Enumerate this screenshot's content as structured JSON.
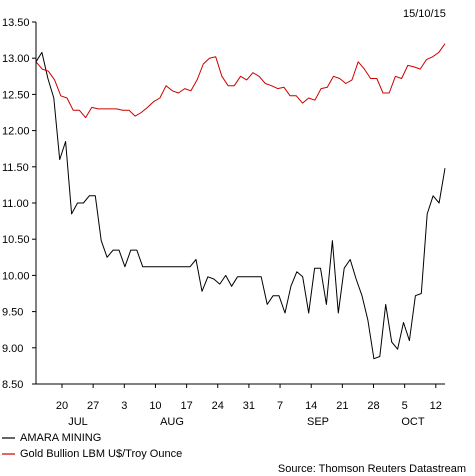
{
  "chart_data": {
    "type": "line",
    "date_label": "15/10/15",
    "source": "Source: Thomson Reuters Datastream",
    "ylim": [
      8.5,
      13.5
    ],
    "y_ticks": [
      "13.50",
      "13.00",
      "12.50",
      "12.00",
      "11.50",
      "11.00",
      "10.50",
      "10.00",
      "9.50",
      "9.00",
      "8.50"
    ],
    "x_ticks": [
      "20",
      "27",
      "3",
      "10",
      "17",
      "24",
      "31",
      "7",
      "14",
      "21",
      "28",
      "5",
      "12"
    ],
    "months": [
      "JUL",
      "AUG",
      "SEP",
      "OCT"
    ],
    "colors": {
      "amara": "#000000",
      "gold": "#cc0000"
    },
    "series": [
      {
        "name": "AMARA MINING",
        "key": "amara",
        "values": [
          12.95,
          13.08,
          12.72,
          12.45,
          11.6,
          11.85,
          10.85,
          11.0,
          11.0,
          11.1,
          11.1,
          10.48,
          10.25,
          10.35,
          10.35,
          10.12,
          10.35,
          10.35,
          10.12,
          10.12,
          10.12,
          10.12,
          10.12,
          10.12,
          10.12,
          10.12,
          10.12,
          10.22,
          9.78,
          9.98,
          9.95,
          9.88,
          10.0,
          9.85,
          9.98,
          9.98,
          9.98,
          9.98,
          9.98,
          9.6,
          9.72,
          9.72,
          9.48,
          9.85,
          10.05,
          9.98,
          9.48,
          10.1,
          10.1,
          9.6,
          10.48,
          9.48,
          10.1,
          10.22,
          9.95,
          9.72,
          9.38,
          8.85,
          8.88,
          9.6,
          9.08,
          8.98,
          9.35,
          9.1,
          9.72,
          9.75,
          10.85,
          11.1,
          11.0,
          11.48
        ]
      },
      {
        "name": "Gold Bullion LBM U$/Troy Ounce",
        "key": "gold",
        "values": [
          12.95,
          12.85,
          12.82,
          12.7,
          12.48,
          12.45,
          12.28,
          12.28,
          12.18,
          12.32,
          12.3,
          12.3,
          12.3,
          12.3,
          12.28,
          12.28,
          12.2,
          12.25,
          12.32,
          12.4,
          12.45,
          12.62,
          12.55,
          12.52,
          12.58,
          12.55,
          12.7,
          12.92,
          13.0,
          13.02,
          12.75,
          12.62,
          12.62,
          12.75,
          12.7,
          12.8,
          12.75,
          12.65,
          12.62,
          12.58,
          12.6,
          12.48,
          12.48,
          12.38,
          12.45,
          12.42,
          12.58,
          12.6,
          12.75,
          12.72,
          12.65,
          12.7,
          12.95,
          12.85,
          12.72,
          12.72,
          12.52,
          12.52,
          12.75,
          12.72,
          12.9,
          12.88,
          12.85,
          12.98,
          13.02,
          13.08,
          13.2
        ]
      }
    ]
  }
}
